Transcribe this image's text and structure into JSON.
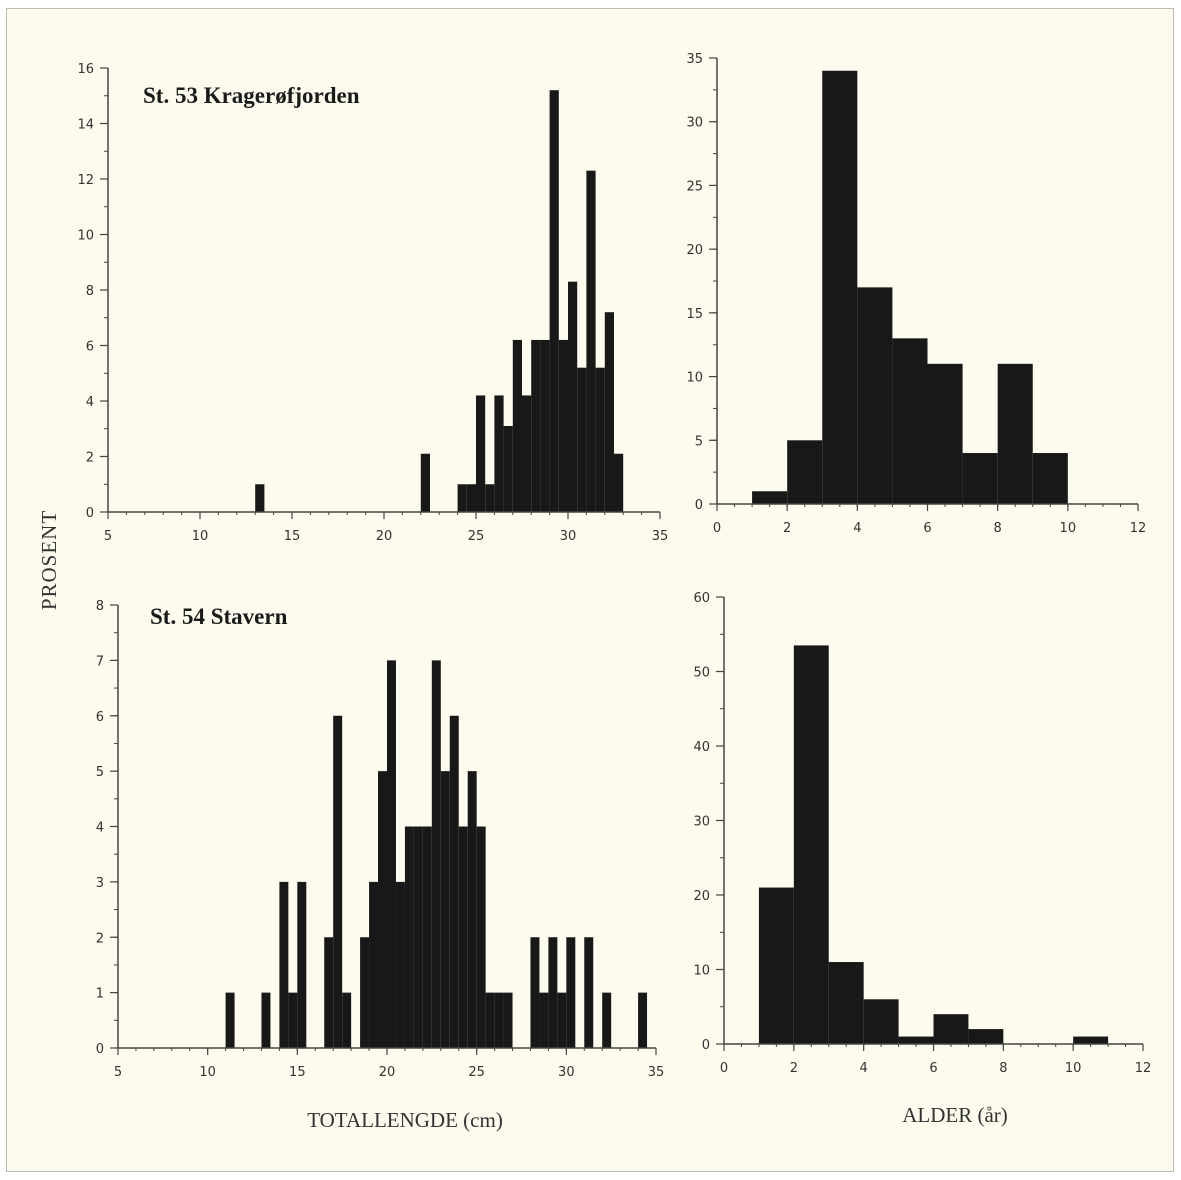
{
  "figure": {
    "ylabel": "PROSENT",
    "xlabel_length": "TOTALLENGDE (cm)",
    "xlabel_age": "ALDER (år)"
  },
  "colors": {
    "bar": "#181818",
    "axis": "#444444",
    "background": "#fdfbee"
  },
  "chart_data": [
    {
      "type": "bar",
      "title": "St. 53 Kragerøfjorden",
      "xlabel": "",
      "ylabel": "PROSENT",
      "xlim": [
        5,
        35
      ],
      "ylim": [
        0,
        16
      ],
      "xticks": [
        5,
        10,
        15,
        20,
        25,
        30,
        35
      ],
      "yticks": [
        0,
        2,
        4,
        6,
        8,
        10,
        12,
        14,
        16
      ],
      "bin_width": 0.5,
      "bins": [
        {
          "x": 13,
          "y": 1.0
        },
        {
          "x": 22,
          "y": 2.1
        },
        {
          "x": 24,
          "y": 1.0
        },
        {
          "x": 24.5,
          "y": 1.0
        },
        {
          "x": 25,
          "y": 4.2
        },
        {
          "x": 25.5,
          "y": 1.0
        },
        {
          "x": 26,
          "y": 4.2
        },
        {
          "x": 26.5,
          "y": 3.1
        },
        {
          "x": 27,
          "y": 6.2
        },
        {
          "x": 27.5,
          "y": 4.2
        },
        {
          "x": 28,
          "y": 6.2
        },
        {
          "x": 28.5,
          "y": 6.2
        },
        {
          "x": 29,
          "y": 15.2
        },
        {
          "x": 29.5,
          "y": 6.2
        },
        {
          "x": 30,
          "y": 8.3
        },
        {
          "x": 30.5,
          "y": 5.2
        },
        {
          "x": 31,
          "y": 12.3
        },
        {
          "x": 31.5,
          "y": 5.2
        },
        {
          "x": 32,
          "y": 7.2
        },
        {
          "x": 32.5,
          "y": 2.1
        }
      ]
    },
    {
      "type": "bar",
      "title": "",
      "xlabel": "",
      "ylabel": "",
      "xlim": [
        0,
        12
      ],
      "ylim": [
        0,
        35
      ],
      "xticks": [
        0,
        2,
        4,
        6,
        8,
        10,
        12
      ],
      "yticks": [
        0,
        5,
        10,
        15,
        20,
        25,
        30,
        35
      ],
      "bin_width": 1,
      "bins": [
        {
          "x": 1,
          "y": 1
        },
        {
          "x": 2,
          "y": 5
        },
        {
          "x": 3,
          "y": 34
        },
        {
          "x": 4,
          "y": 17
        },
        {
          "x": 5,
          "y": 13
        },
        {
          "x": 6,
          "y": 11
        },
        {
          "x": 7,
          "y": 4
        },
        {
          "x": 8,
          "y": 11
        },
        {
          "x": 9,
          "y": 4
        }
      ]
    },
    {
      "type": "bar",
      "title": "St. 54 Stavern",
      "xlabel": "TOTALLENGDE (cm)",
      "ylabel": "PROSENT",
      "xlim": [
        5,
        35
      ],
      "ylim": [
        0,
        8
      ],
      "xticks": [
        5,
        10,
        15,
        20,
        25,
        30,
        35
      ],
      "yticks": [
        0,
        1,
        2,
        3,
        4,
        5,
        6,
        7,
        8
      ],
      "bin_width": 0.5,
      "bins": [
        {
          "x": 11,
          "y": 1
        },
        {
          "x": 13,
          "y": 1
        },
        {
          "x": 14,
          "y": 3
        },
        {
          "x": 14.5,
          "y": 1
        },
        {
          "x": 15,
          "y": 3
        },
        {
          "x": 16.5,
          "y": 2
        },
        {
          "x": 17,
          "y": 6
        },
        {
          "x": 17.5,
          "y": 1
        },
        {
          "x": 18.5,
          "y": 2
        },
        {
          "x": 19,
          "y": 3
        },
        {
          "x": 19.5,
          "y": 5
        },
        {
          "x": 20,
          "y": 7
        },
        {
          "x": 20.5,
          "y": 3
        },
        {
          "x": 21,
          "y": 4
        },
        {
          "x": 21.5,
          "y": 4
        },
        {
          "x": 22,
          "y": 4
        },
        {
          "x": 22.5,
          "y": 7
        },
        {
          "x": 23,
          "y": 5
        },
        {
          "x": 23.5,
          "y": 6
        },
        {
          "x": 24,
          "y": 4
        },
        {
          "x": 24.5,
          "y": 5
        },
        {
          "x": 25,
          "y": 4
        },
        {
          "x": 25.5,
          "y": 1
        },
        {
          "x": 26,
          "y": 1
        },
        {
          "x": 26.5,
          "y": 1
        },
        {
          "x": 28,
          "y": 2
        },
        {
          "x": 28.5,
          "y": 1
        },
        {
          "x": 29,
          "y": 2
        },
        {
          "x": 29.5,
          "y": 1
        },
        {
          "x": 30,
          "y": 2
        },
        {
          "x": 31,
          "y": 2
        },
        {
          "x": 32,
          "y": 1
        },
        {
          "x": 34,
          "y": 1
        }
      ]
    },
    {
      "type": "bar",
      "title": "",
      "xlabel": "ALDER (år)",
      "ylabel": "",
      "xlim": [
        0,
        12
      ],
      "ylim": [
        0,
        60
      ],
      "xticks": [
        0,
        2,
        4,
        6,
        8,
        10,
        12
      ],
      "yticks": [
        0,
        10,
        20,
        30,
        40,
        50,
        60
      ],
      "bin_width": 1,
      "bins": [
        {
          "x": 1,
          "y": 21
        },
        {
          "x": 2,
          "y": 53.5
        },
        {
          "x": 3,
          "y": 11
        },
        {
          "x": 4,
          "y": 6
        },
        {
          "x": 5,
          "y": 1
        },
        {
          "x": 6,
          "y": 4
        },
        {
          "x": 7,
          "y": 2
        },
        {
          "x": 10,
          "y": 1
        }
      ]
    }
  ]
}
